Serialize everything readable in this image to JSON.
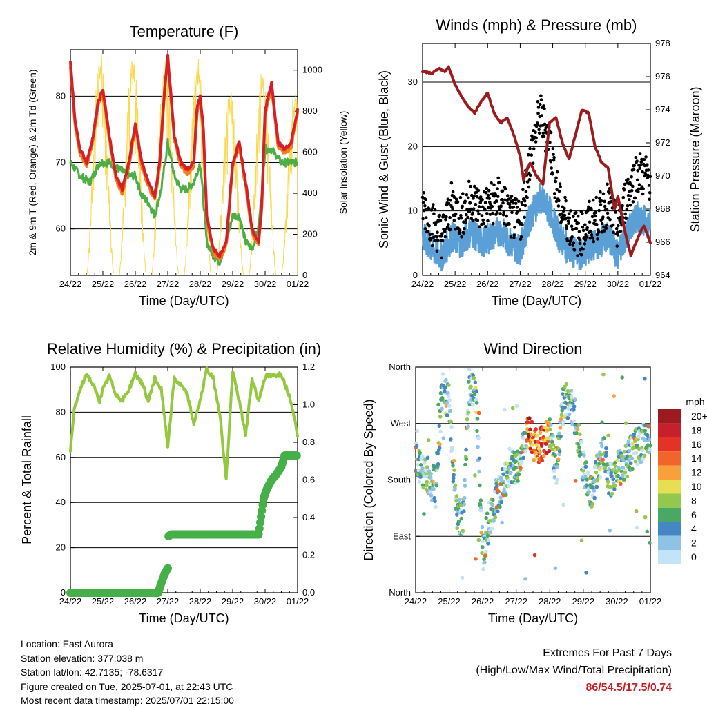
{
  "colors": {
    "t2m": "#d62027",
    "t9m": "#f47d20",
    "td": "#4cae44",
    "solar": "#f9d94e",
    "gust": "#000000",
    "wind": "#5a9fd6",
    "pressure": "#9b1c1f",
    "rh": "#93c83f",
    "precip": "#46b048"
  },
  "time_axis": {
    "label": "Time (Day/UTC)",
    "ticks": [
      "24/22",
      "25/22",
      "26/22",
      "27/22",
      "28/22",
      "29/22",
      "30/22",
      "01/22"
    ]
  },
  "chart_data": [
    {
      "type": "line",
      "title": "Temperature (F)",
      "xlabel": "Time (Day/UTC)",
      "ylabel": "2m & 9m T (Red, Orange) & 2m Td (Green)",
      "ylabel_right": "Solar Insolation (Yellow)",
      "ylim": [
        53,
        87
      ],
      "ylim_right": [
        0,
        1100
      ],
      "yticks": [
        "60",
        "70",
        "80"
      ],
      "yticks_right": [
        "0",
        "200",
        "400",
        "600",
        "800",
        "1000"
      ],
      "series": [
        {
          "key": "t2m",
          "x": [
            0,
            0.15,
            0.3,
            0.5,
            0.7,
            0.85,
            1,
            1.2,
            1.4,
            1.6,
            1.8,
            2,
            2.2,
            2.4,
            2.6,
            2.75,
            2.9,
            3,
            3.2,
            3.4,
            3.6,
            3.8,
            3.9,
            4,
            4.1,
            4.2,
            4.4,
            4.6,
            4.8,
            5,
            5.2,
            5.4,
            5.6,
            5.8,
            5.9,
            6,
            6.2,
            6.4,
            6.6,
            6.8,
            7
          ],
          "y": [
            85,
            76,
            72,
            70,
            74,
            79,
            81,
            74,
            68,
            66,
            70,
            76,
            70,
            67,
            65,
            70,
            81,
            86,
            74,
            70,
            69,
            70,
            78,
            80,
            75,
            62,
            57,
            56,
            58,
            70,
            73,
            67,
            60,
            58,
            64,
            78,
            82,
            73,
            72,
            73,
            78
          ]
        },
        {
          "key": "td",
          "x": [
            0,
            0.3,
            0.6,
            0.9,
            1.2,
            1.5,
            1.8,
            2,
            2.2,
            2.4,
            2.6,
            2.8,
            3,
            3.2,
            3.4,
            3.6,
            3.8,
            4,
            4.2,
            4.4,
            4.6,
            4.8,
            5,
            5.2,
            5.4,
            5.6,
            5.8,
            6,
            6.2,
            6.5,
            6.8,
            7
          ],
          "y": [
            70,
            68,
            67,
            70,
            70,
            69,
            68,
            68,
            65,
            64,
            62,
            66,
            73,
            68,
            66,
            66,
            67,
            70,
            58,
            56,
            55,
            58,
            62,
            62,
            58,
            57,
            60,
            72,
            72,
            70,
            70,
            70
          ]
        },
        {
          "key": "solar_peaks",
          "x": [
            0.92,
            1.92,
            2.92,
            3.92,
            4.92,
            5.92,
            6.92
          ],
          "y": [
            1100,
            1080,
            1050,
            1060,
            900,
            1000,
            900
          ]
        }
      ]
    },
    {
      "type": "line",
      "title": "Winds (mph) & Pressure (mb)",
      "xlabel": "Time (Day/UTC)",
      "ylabel": "Sonic Wind & Gust (Blue, Black)",
      "ylabel_right": "Station Pressure (Maroon)",
      "ylim": [
        0,
        36
      ],
      "ylim_right": [
        964,
        978
      ],
      "yticks": [
        "0",
        "10",
        "20",
        "30"
      ],
      "yticks_right": [
        "964",
        "966",
        "968",
        "970",
        "972",
        "974",
        "976",
        "978"
      ],
      "series": [
        {
          "key": "pressure",
          "x": [
            0,
            0.3,
            0.5,
            0.7,
            0.8,
            1,
            1.2,
            1.4,
            1.6,
            1.8,
            2,
            2.2,
            2.4,
            2.6,
            2.8,
            3,
            3.1,
            3.3,
            3.5,
            3.7,
            3.9,
            4.1,
            4.3,
            4.5,
            4.7,
            4.9,
            5.1,
            5.3,
            5.5,
            5.7,
            5.9,
            6,
            6.2,
            6.4,
            6.6,
            6.8,
            7
          ],
          "y": [
            976.3,
            976.2,
            976.5,
            976.3,
            976.6,
            975.5,
            974.8,
            974.2,
            973.8,
            974.5,
            975.0,
            973.8,
            973.2,
            973.5,
            972.5,
            971.2,
            969.8,
            970.8,
            970.0,
            969.5,
            973.2,
            973.5,
            972.0,
            971.0,
            972.5,
            974.0,
            973.8,
            971.8,
            970.8,
            970.5,
            968.0,
            968.8,
            966.8,
            965.2,
            966.2,
            967.0,
            966.0
          ]
        },
        {
          "key": "wind_mean",
          "x": [
            0,
            0.3,
            0.6,
            0.9,
            1.2,
            1.5,
            1.8,
            2.1,
            2.4,
            2.7,
            3,
            3.3,
            3.6,
            3.9,
            4.2,
            4.5,
            4.8,
            5.1,
            5.4,
            5.7,
            6,
            6.3,
            6.6,
            7
          ],
          "y": [
            6,
            4,
            3,
            6,
            5,
            7,
            5,
            6,
            7,
            5,
            4,
            9,
            12,
            10,
            6,
            4,
            3,
            4,
            5,
            6,
            3,
            7,
            9,
            8
          ]
        },
        {
          "key": "gust_mean",
          "x": [
            0,
            0.3,
            0.6,
            0.9,
            1.2,
            1.5,
            1.8,
            2.1,
            2.4,
            2.7,
            3,
            3.3,
            3.6,
            3.9,
            4.2,
            4.5,
            4.8,
            5.1,
            5.4,
            5.7,
            6,
            6.3,
            6.6,
            7
          ],
          "y": [
            10,
            7,
            5,
            10,
            8,
            11,
            9,
            10,
            11,
            8,
            7,
            17,
            24,
            20,
            10,
            7,
            5,
            7,
            8,
            10,
            6,
            12,
            15,
            14
          ]
        }
      ]
    },
    {
      "type": "line",
      "title": "Relative Humidity (%) & Precipitation (in)",
      "xlabel": "Time (Day/UTC)",
      "ylabel": "Percent & Total Rainfall",
      "ylim": [
        0,
        100
      ],
      "ylim_right": [
        0,
        1.2
      ],
      "yticks": [
        "0",
        "20",
        "40",
        "60",
        "80",
        "100"
      ],
      "yticks_right": [
        "0.0",
        "0.2",
        "0.4",
        "0.6",
        "0.8",
        "1.0",
        "1.2"
      ],
      "series": [
        {
          "key": "rh",
          "x": [
            0,
            0.1,
            0.3,
            0.5,
            0.7,
            0.9,
            1,
            1.2,
            1.4,
            1.6,
            1.8,
            2,
            2.2,
            2.4,
            2.6,
            2.8,
            3,
            3.2,
            3.4,
            3.6,
            3.8,
            4,
            4.2,
            4.4,
            4.6,
            4.8,
            5,
            5.2,
            5.4,
            5.6,
            5.8,
            6,
            6.2,
            6.5,
            6.8,
            7
          ],
          "y": [
            62,
            80,
            90,
            97,
            92,
            85,
            90,
            96,
            88,
            85,
            90,
            97,
            93,
            85,
            95,
            90,
            65,
            95,
            92,
            88,
            75,
            85,
            99,
            95,
            80,
            50,
            98,
            85,
            70,
            95,
            85,
            96,
            96,
            97,
            85,
            70
          ]
        },
        {
          "key": "precip",
          "x": [
            0,
            2.7,
            2.8,
            2.9,
            3.0,
            3.02,
            3.1,
            5.8,
            5.95,
            6.05,
            6.2,
            6.35,
            6.5,
            6.6,
            7
          ],
          "y": [
            0,
            0,
            0.05,
            0.1,
            0.13,
            0.3,
            0.31,
            0.31,
            0.5,
            0.55,
            0.6,
            0.63,
            0.67,
            0.73,
            0.73
          ]
        }
      ]
    },
    {
      "type": "scatter",
      "title": "Wind Direction",
      "xlabel": "Time (Day/UTC)",
      "ylabel": "Direction (Colored By Speed)",
      "ylim": [
        0,
        360
      ],
      "yticks": [
        "North",
        "East",
        "South",
        "West",
        "North"
      ],
      "legend": {
        "title": "mph",
        "labels": [
          "20+",
          "18",
          "16",
          "14",
          "12",
          "10",
          "8",
          "6",
          "4",
          "2",
          "0"
        ],
        "colors": [
          "#9b1b1e",
          "#c8202a",
          "#e53226",
          "#f2652a",
          "#f8a13a",
          "#e6df52",
          "#92c84b",
          "#4aa865",
          "#4586c4",
          "#8ec3e6",
          "#c2e4f6"
        ]
      },
      "series": [
        {
          "key": "dir_track",
          "x": [
            0,
            0.3,
            0.6,
            0.8,
            1,
            1.2,
            1.4,
            1.6,
            1.8,
            2,
            2.2,
            2.4,
            2.6,
            2.8,
            3,
            3.2,
            3.4,
            3.6,
            3.8,
            4,
            4.2,
            4.4,
            4.6,
            4.8,
            5,
            5.2,
            5.4,
            5.6,
            5.8,
            6,
            6.2,
            6.5,
            6.8,
            7
          ],
          "y": [
            210,
            190,
            170,
            330,
            300,
            140,
            100,
            330,
            320,
            60,
            120,
            150,
            170,
            200,
            200,
            225,
            260,
            230,
            240,
            250,
            200,
            300,
            310,
            270,
            200,
            160,
            190,
            220,
            180,
            200,
            200,
            230,
            240,
            250
          ]
        }
      ]
    }
  ],
  "info": {
    "location": "Location: East Aurora",
    "elevation": "Station elevation: 377.038 m",
    "latlon": "Station lat/lon: 42.7135; -78.6317",
    "created": "Figure created on Tue, 2025-07-01, at 22:43 UTC",
    "recent": "Most recent data timestamp: 2025/07/01 22:15:00"
  },
  "extremes": {
    "title": "Extremes For Past 7 Days",
    "subtitle": "(High/Low/Max Wind/Total Precipitation)",
    "values": "86/54.5/17.5/0.74"
  }
}
